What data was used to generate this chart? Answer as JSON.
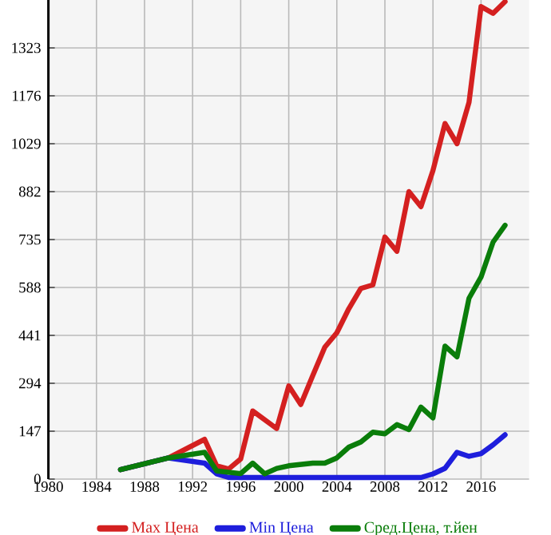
{
  "chart_data": {
    "type": "line",
    "xlim": [
      1980,
      2020
    ],
    "xticks": [
      1980,
      1984,
      1988,
      1992,
      1996,
      2000,
      2004,
      2008,
      2012,
      2016
    ],
    "ylim": [
      0,
      1470
    ],
    "yticks": [
      0,
      147,
      294,
      441,
      588,
      735,
      882,
      1029,
      1176,
      1323
    ],
    "grid": true,
    "legend": "bottom",
    "line_style": "solid",
    "marker": "none",
    "series": [
      {
        "name": "Max Цена",
        "color": "#d42020",
        "x": [
          1986,
          1990,
          1993,
          1994,
          1995,
          1996,
          1997,
          1999,
          2000,
          2001,
          2002,
          2003,
          2004,
          2005,
          2006,
          2007,
          2008,
          2009,
          2010,
          2011,
          2012,
          2013,
          2014,
          2015,
          2016,
          2017,
          2018
        ],
        "values": [
          29,
          65,
          122,
          41,
          31,
          62,
          209,
          155,
          286,
          229,
          318,
          405,
          449,
          523,
          585,
          596,
          743,
          699,
          882,
          836,
          947,
          1091,
          1029,
          1156,
          1450,
          1429,
          1465
        ]
      },
      {
        "name": "Min Цена",
        "color": "#1e1edc",
        "x": [
          1986,
          1990,
          1993,
          1994,
          1995,
          1997,
          2000,
          2004,
          2008,
          2011,
          2012,
          2013,
          2014,
          2015,
          2016,
          2017,
          2018
        ],
        "values": [
          29,
          65,
          49,
          16,
          5,
          5,
          5,
          5,
          5,
          5,
          16,
          33,
          82,
          70,
          78,
          105,
          136
        ]
      },
      {
        "name": "Сред.Цена, т.йен",
        "color": "#0a7d0a",
        "x": [
          1986,
          1990,
          1993,
          1994,
          1996,
          1997,
          1998,
          1999,
          2000,
          2002,
          2003,
          2004,
          2005,
          2006,
          2007,
          2008,
          2009,
          2010,
          2011,
          2012,
          2013,
          2014,
          2015,
          2016,
          2017,
          2018
        ],
        "values": [
          29,
          65,
          82,
          25,
          17,
          49,
          16,
          33,
          41,
          49,
          49,
          65,
          98,
          114,
          144,
          139,
          167,
          152,
          221,
          188,
          408,
          375,
          555,
          620,
          727,
          779
        ]
      }
    ]
  }
}
